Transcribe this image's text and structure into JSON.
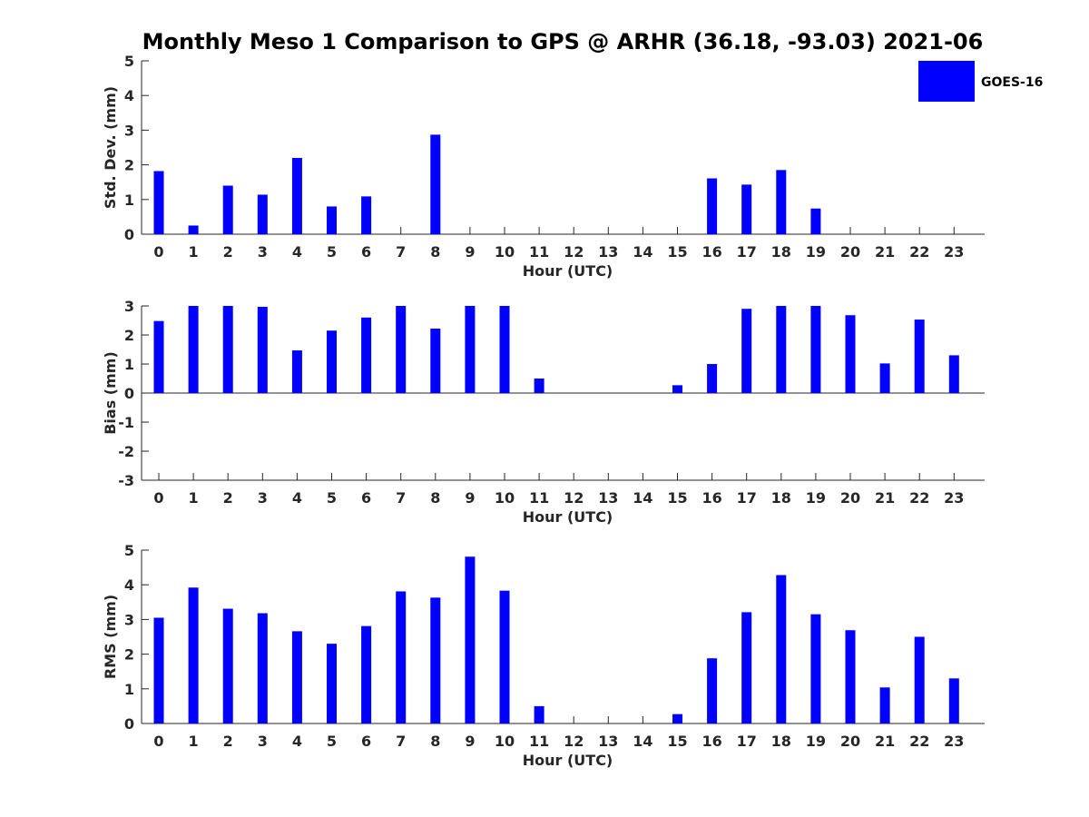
{
  "title": "Monthly Meso 1 Comparison to GPS @ ARHR (36.18, -93.03) 2021-06",
  "colors": {
    "bar": "#0000ff",
    "axis": "#262626"
  },
  "legend": {
    "label": "GOES-16",
    "placement": "top-right"
  },
  "chart_data": [
    {
      "type": "bar",
      "title": "",
      "xlabel": "Hour (UTC)",
      "ylabel": "Std. Dev. (mm)",
      "ylim": [
        0,
        5
      ],
      "yticks": [
        0,
        1,
        2,
        3,
        4,
        5
      ],
      "categories": [
        "0",
        "1",
        "2",
        "3",
        "4",
        "5",
        "6",
        "7",
        "8",
        "9",
        "10",
        "11",
        "12",
        "13",
        "14",
        "15",
        "16",
        "17",
        "18",
        "19",
        "20",
        "21",
        "22",
        "23"
      ],
      "series": [
        {
          "name": "GOES-16",
          "values": [
            1.82,
            0.25,
            1.4,
            1.14,
            2.2,
            0.8,
            1.09,
            0,
            2.87,
            0,
            0,
            0,
            0,
            0,
            0,
            0,
            1.61,
            1.43,
            1.85,
            0.74,
            0,
            0,
            0,
            0
          ]
        }
      ]
    },
    {
      "type": "bar",
      "title": "",
      "xlabel": "Hour (UTC)",
      "ylabel": "Bias (mm)",
      "ylim": [
        -3,
        3
      ],
      "yticks": [
        -3,
        -2,
        -1,
        0,
        1,
        2,
        3
      ],
      "categories": [
        "0",
        "1",
        "2",
        "3",
        "4",
        "5",
        "6",
        "7",
        "8",
        "9",
        "10",
        "11",
        "12",
        "13",
        "14",
        "15",
        "16",
        "17",
        "18",
        "19",
        "20",
        "21",
        "22",
        "23"
      ],
      "series": [
        {
          "name": "GOES-16",
          "values": [
            2.48,
            3.0,
            3.0,
            2.97,
            1.47,
            2.15,
            2.6,
            3.0,
            2.22,
            3.0,
            3.0,
            0.5,
            0,
            0,
            0,
            0.27,
            1.0,
            2.9,
            3.0,
            3.0,
            2.68,
            1.02,
            2.53,
            1.3
          ]
        }
      ]
    },
    {
      "type": "bar",
      "title": "",
      "xlabel": "Hour (UTC)",
      "ylabel": "RMS (mm)",
      "ylim": [
        0,
        5
      ],
      "yticks": [
        0,
        1,
        2,
        3,
        4,
        5
      ],
      "categories": [
        "0",
        "1",
        "2",
        "3",
        "4",
        "5",
        "6",
        "7",
        "8",
        "9",
        "10",
        "11",
        "12",
        "13",
        "14",
        "15",
        "16",
        "17",
        "18",
        "19",
        "20",
        "21",
        "22",
        "23"
      ],
      "series": [
        {
          "name": "GOES-16",
          "values": [
            3.05,
            3.92,
            3.31,
            3.18,
            2.66,
            2.3,
            2.81,
            3.81,
            3.63,
            4.81,
            3.83,
            0.5,
            0,
            0,
            0,
            0.27,
            1.88,
            3.21,
            4.28,
            3.15,
            2.69,
            1.04,
            2.5,
            1.3
          ]
        }
      ]
    }
  ]
}
